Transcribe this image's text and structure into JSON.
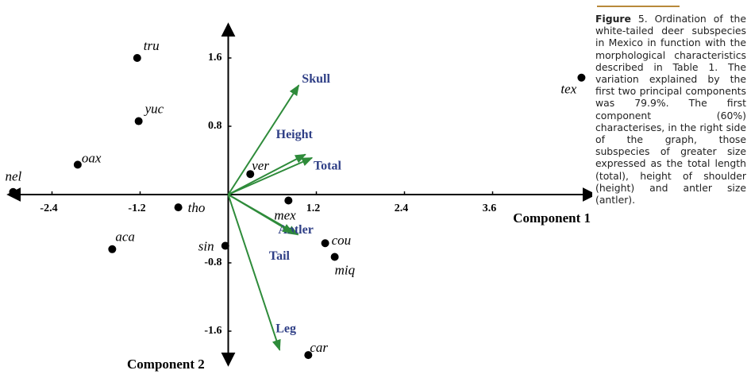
{
  "chart_data": {
    "type": "biplot",
    "xlabel": "Component 1",
    "ylabel": "Component 2",
    "xlim": [
      -3.0,
      5.0
    ],
    "ylim": [
      -2.0,
      2.0
    ],
    "xticks": [
      -2.4,
      -1.2,
      1.2,
      2.4,
      3.6
    ],
    "yticks": [
      -1.6,
      -0.8,
      0.8,
      1.6
    ],
    "points": {
      "color": "#000000",
      "labels": [
        "tru",
        "yuc",
        "oax",
        "nel",
        "tho",
        "aca",
        "sin",
        "ver",
        "mex",
        "cou",
        "miq",
        "car",
        "tex"
      ],
      "x": [
        -1.24,
        -1.22,
        -2.05,
        -2.93,
        -0.68,
        -1.58,
        -0.04,
        0.3,
        0.82,
        1.32,
        1.45,
        1.09,
        4.81
      ],
      "y": [
        1.6,
        0.86,
        0.35,
        0.03,
        -0.15,
        -0.64,
        -0.6,
        0.24,
        -0.07,
        -0.57,
        -0.73,
        -1.88,
        1.37
      ]
    },
    "vectors": {
      "color": "#2e8b3a",
      "label_color": "#2f3f86",
      "labels": [
        "Skull",
        "Height",
        "Total",
        "Antler",
        "Tail",
        "Leg"
      ],
      "x": [
        0.96,
        1.05,
        1.14,
        0.95,
        0.88,
        0.7
      ],
      "y": [
        1.28,
        0.47,
        0.43,
        -0.47,
        -0.45,
        -1.82
      ]
    }
  },
  "caption": {
    "label": "Figure",
    "text": "5. Ordination of the white-tailed deer subspecies in Mexico in function with the morphological characteristics described in Table 1. The variation explained by the first two principal components was 79.9%. The first component (60%) characterises, in the right side of the graph, those subspecies of greater size expressed as the total length (total), height of shoulder (height) and antler size (antler)."
  }
}
